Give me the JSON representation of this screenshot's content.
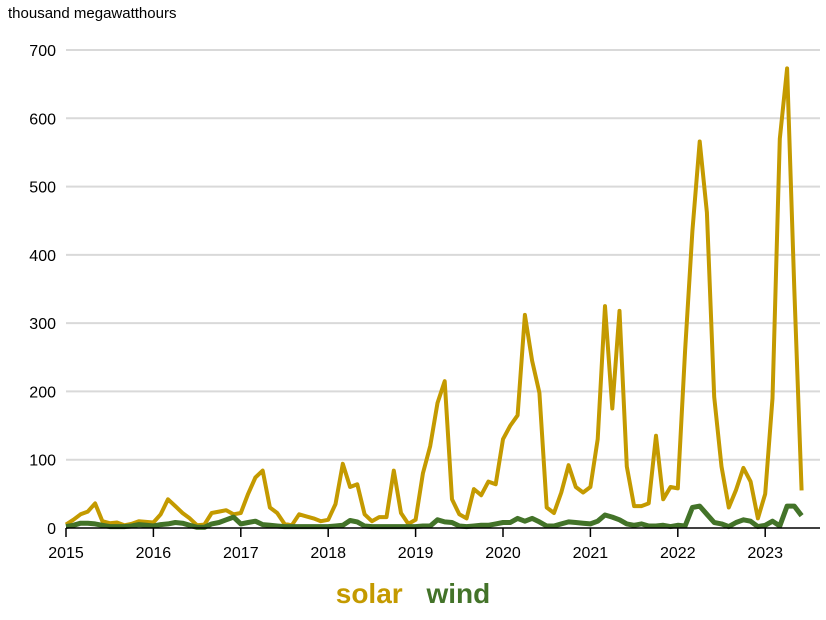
{
  "chart_data": {
    "type": "line",
    "title": "",
    "xlabel": "",
    "ylabel": "thousand megawatthours",
    "ylim": [
      0,
      700
    ],
    "yticks": [
      0,
      100,
      200,
      300,
      400,
      500,
      600,
      700
    ],
    "xticks": [
      "2015",
      "2016",
      "2017",
      "2018",
      "2019",
      "2020",
      "2021",
      "2022",
      "2023"
    ],
    "x_start": "2015-01",
    "x_frequency": "monthly",
    "grid": true,
    "legend_position": "bottom-center",
    "series": [
      {
        "name": "solar",
        "color": "#C49A00",
        "values": [
          5,
          12,
          20,
          24,
          36,
          10,
          7,
          8,
          4,
          6,
          10,
          9,
          8,
          20,
          42,
          32,
          22,
          14,
          4,
          5,
          22,
          24,
          26,
          20,
          22,
          50,
          74,
          84,
          30,
          22,
          6,
          4,
          20,
          17,
          14,
          10,
          12,
          35,
          94,
          60,
          64,
          20,
          10,
          16,
          16,
          84,
          22,
          6,
          12,
          80,
          120,
          183,
          215,
          42,
          20,
          14,
          57,
          48,
          68,
          64,
          130,
          150,
          165,
          312,
          245,
          198,
          30,
          22,
          52,
          92,
          60,
          52,
          60,
          130,
          325,
          175,
          318,
          90,
          32,
          32,
          36,
          135,
          42,
          60,
          58,
          260,
          435,
          566,
          462,
          192,
          90,
          30,
          56,
          88,
          68,
          14,
          50,
          190,
          570,
          673,
          350,
          55
        ]
      },
      {
        "name": "wind",
        "color": "#437329",
        "values": [
          2,
          4,
          7,
          7,
          6,
          4,
          2,
          2,
          2,
          3,
          5,
          4,
          3,
          5,
          6,
          8,
          7,
          4,
          1,
          1,
          6,
          8,
          12,
          16,
          6,
          8,
          10,
          5,
          4,
          3,
          2,
          2,
          2,
          2,
          2,
          2,
          2,
          3,
          4,
          11,
          9,
          3,
          2,
          2,
          2,
          2,
          2,
          2,
          2,
          3,
          3,
          12,
          9,
          8,
          3,
          2,
          3,
          4,
          4,
          6,
          8,
          8,
          14,
          10,
          14,
          9,
          3,
          3,
          6,
          9,
          8,
          7,
          6,
          10,
          19,
          16,
          12,
          6,
          4,
          6,
          3,
          3,
          4,
          2,
          4,
          3,
          30,
          32,
          20,
          8,
          6,
          2,
          8,
          12,
          10,
          2,
          4,
          10,
          3,
          32,
          32,
          18
        ]
      }
    ]
  },
  "labels": {
    "unit": "thousand megawatthours",
    "legend_solar": "solar",
    "legend_wind": "wind"
  }
}
